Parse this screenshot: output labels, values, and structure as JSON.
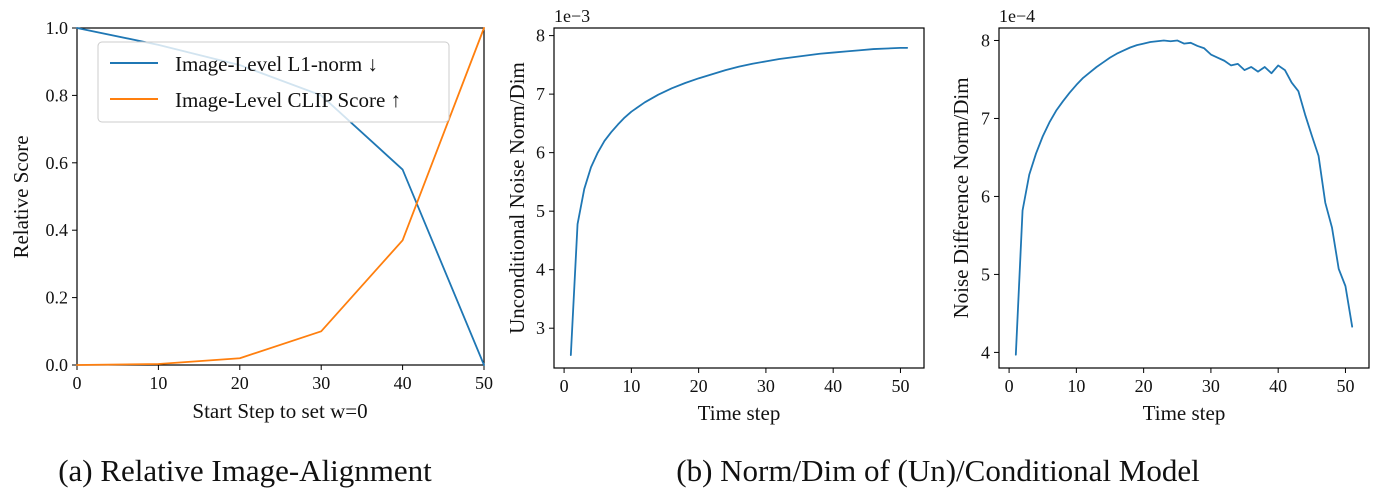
{
  "captions": {
    "a": "(a) Relative Image-Alignment",
    "b": "(b) Norm/Dim of (Un)/Conditional Model"
  },
  "colors": {
    "blue": "#1f77b4",
    "orange": "#ff7f0e"
  },
  "chart_data": [
    {
      "type": "line",
      "xlabel": "Start Step to set w=0",
      "ylabel": "Relative Score",
      "xlim": [
        0,
        50
      ],
      "ylim": [
        0,
        1
      ],
      "xticks": [
        0,
        10,
        20,
        30,
        40,
        50
      ],
      "yticks": [
        0.0,
        0.2,
        0.4,
        0.6,
        0.8,
        1.0
      ],
      "ytick_labels": [
        "0.0",
        "0.2",
        "0.4",
        "0.6",
        "0.8",
        "1.0"
      ],
      "legend_position": "top-left",
      "series": [
        {
          "name": "Image-Level L1-norm ↓",
          "color": "#1f77b4",
          "x": [
            0,
            10,
            20,
            30,
            40,
            50
          ],
          "y": [
            1.0,
            0.95,
            0.89,
            0.8,
            0.58,
            0.0
          ]
        },
        {
          "name": "Image-Level CLIP Score ↑",
          "color": "#ff7f0e",
          "x": [
            0,
            10,
            20,
            30,
            40,
            50
          ],
          "y": [
            0.0,
            0.003,
            0.02,
            0.1,
            0.37,
            1.0
          ]
        }
      ]
    },
    {
      "type": "line",
      "xlabel": "Time step",
      "ylabel": "Unconditional Noise Norm/Dim",
      "offset_label": "1e−3",
      "xlim": [
        -1.5,
        53.5
      ],
      "ylim": [
        2.32,
        8.13
      ],
      "xticks": [
        0,
        10,
        20,
        30,
        40,
        50
      ],
      "yticks": [
        3,
        4,
        5,
        6,
        7,
        8
      ],
      "series": [
        {
          "color": "#1f77b4",
          "x": [
            1,
            2,
            3,
            4,
            5,
            6,
            7,
            8,
            9,
            10,
            12,
            14,
            16,
            18,
            20,
            22,
            24,
            26,
            28,
            30,
            32,
            34,
            36,
            38,
            40,
            42,
            44,
            46,
            48,
            50,
            51
          ],
          "y": [
            2.54,
            4.78,
            5.38,
            5.75,
            6.0,
            6.2,
            6.35,
            6.48,
            6.6,
            6.7,
            6.86,
            6.99,
            7.1,
            7.19,
            7.27,
            7.34,
            7.41,
            7.47,
            7.52,
            7.56,
            7.6,
            7.63,
            7.66,
            7.69,
            7.71,
            7.73,
            7.75,
            7.77,
            7.78,
            7.79,
            7.79
          ]
        }
      ]
    },
    {
      "type": "line",
      "xlabel": "Time step",
      "ylabel": "Noise Difference Norm/Dim",
      "offset_label": "1e−4",
      "xlim": [
        -1.5,
        53.5
      ],
      "ylim": [
        3.8,
        8.16
      ],
      "xticks": [
        0,
        10,
        20,
        30,
        40,
        50
      ],
      "yticks": [
        4,
        5,
        6,
        7,
        8
      ],
      "series": [
        {
          "color": "#1f77b4",
          "x": [
            1,
            2,
            3,
            4,
            5,
            6,
            7,
            8,
            9,
            10,
            11,
            12,
            13,
            14,
            15,
            16,
            17,
            18,
            19,
            20,
            21,
            22,
            23,
            24,
            25,
            26,
            27,
            28,
            29,
            30,
            31,
            32,
            33,
            34,
            35,
            36,
            37,
            38,
            39,
            40,
            41,
            42,
            43,
            44,
            45,
            46,
            47,
            48,
            49,
            50,
            51
          ],
          "y": [
            3.97,
            5.82,
            6.28,
            6.55,
            6.77,
            6.95,
            7.1,
            7.22,
            7.33,
            7.43,
            7.52,
            7.59,
            7.66,
            7.72,
            7.78,
            7.83,
            7.87,
            7.91,
            7.94,
            7.96,
            7.98,
            7.99,
            8.0,
            7.99,
            8.0,
            7.96,
            7.97,
            7.93,
            7.9,
            7.82,
            7.78,
            7.74,
            7.68,
            7.7,
            7.62,
            7.66,
            7.6,
            7.66,
            7.58,
            7.68,
            7.62,
            7.46,
            7.35,
            7.05,
            6.78,
            6.52,
            5.92,
            5.6,
            5.07,
            4.85,
            4.33
          ]
        }
      ]
    }
  ]
}
